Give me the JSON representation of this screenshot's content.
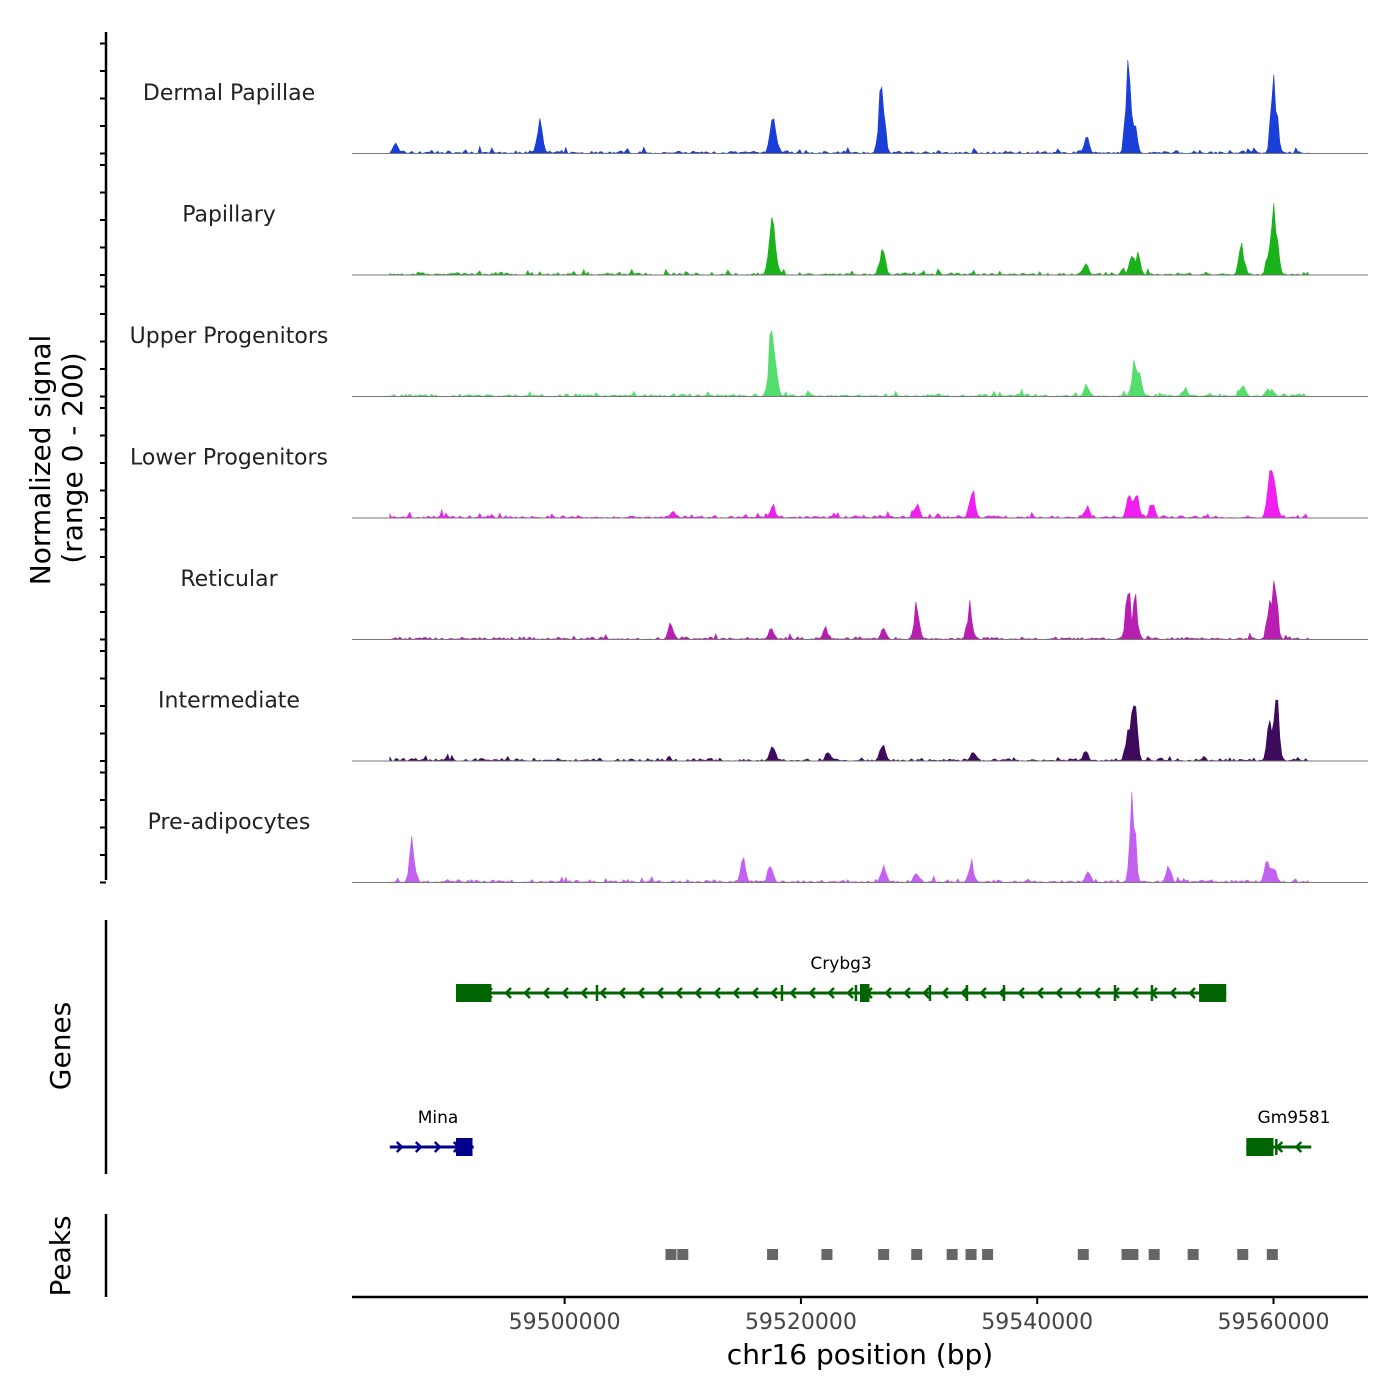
{
  "chart_data": {
    "type": "area",
    "title": "",
    "xlabel": "chr16 position (bp)",
    "ylabel": "Normalized signal",
    "ylabel_range": "(range 0 - 200)",
    "xlim": [
      59482000,
      59568000
    ],
    "ylim": [
      0,
      200
    ],
    "x_ticks": [
      59500000,
      59520000,
      59540000,
      59560000
    ],
    "x_tick_labels": [
      "59500000",
      "59520000",
      "59540000",
      "59560000"
    ],
    "tracks": [
      {
        "name": "Dermal Papillae",
        "color": "#1a3fd6",
        "peaks": [
          [
            59485700,
            22
          ],
          [
            59497900,
            80
          ],
          [
            59517600,
            85
          ],
          [
            59517900,
            40
          ],
          [
            59526800,
            165
          ],
          [
            59526950,
            95
          ],
          [
            59544200,
            35
          ],
          [
            59547700,
            190
          ],
          [
            59548200,
            70
          ],
          [
            59560000,
            180
          ],
          [
            59560200,
            100
          ]
        ]
      },
      {
        "name": "Papillary",
        "color": "#1ab21a",
        "peaks": [
          [
            59517500,
            145
          ],
          [
            59517800,
            60
          ],
          [
            59526900,
            70
          ],
          [
            59544100,
            25
          ],
          [
            59548000,
            45
          ],
          [
            59548500,
            50
          ],
          [
            59557300,
            70
          ],
          [
            59559600,
            50
          ],
          [
            59560000,
            150
          ],
          [
            59560200,
            90
          ]
        ]
      },
      {
        "name": "Upper Progenitors",
        "color": "#55dd6e",
        "peaks": [
          [
            59517500,
            150
          ],
          [
            59517800,
            90
          ],
          [
            59544200,
            25
          ],
          [
            59548200,
            70
          ],
          [
            59548600,
            50
          ],
          [
            59552500,
            18
          ],
          [
            59557400,
            25
          ],
          [
            59559500,
            15
          ],
          [
            59559900,
            15
          ]
        ]
      },
      {
        "name": "Lower Progenitors",
        "color": "#f01ef0",
        "peaks": [
          [
            59509200,
            15
          ],
          [
            59517600,
            30
          ],
          [
            59529800,
            35
          ],
          [
            59534500,
            70
          ],
          [
            59544200,
            25
          ],
          [
            59547800,
            55
          ],
          [
            59548400,
            55
          ],
          [
            59549700,
            35
          ],
          [
            59559700,
            120
          ],
          [
            59560000,
            110
          ]
        ]
      },
      {
        "name": "Reticular",
        "color": "#b81fb0",
        "peaks": [
          [
            59509000,
            35
          ],
          [
            59517500,
            25
          ],
          [
            59522100,
            25
          ],
          [
            59527000,
            25
          ],
          [
            59529800,
            85
          ],
          [
            59534300,
            75
          ],
          [
            59547700,
            110
          ],
          [
            59548300,
            85
          ],
          [
            59559700,
            95
          ],
          [
            59560100,
            130
          ]
        ]
      },
      {
        "name": "Intermediate",
        "color": "#3d0a5c",
        "peaks": [
          [
            59517600,
            40
          ],
          [
            59522300,
            20
          ],
          [
            59526900,
            40
          ],
          [
            59534600,
            20
          ],
          [
            59544100,
            20
          ],
          [
            59547700,
            70
          ],
          [
            59548200,
            145
          ],
          [
            59559700,
            90
          ],
          [
            59560200,
            150
          ]
        ]
      },
      {
        "name": "Pre-adipocytes",
        "color": "#c260f0",
        "peaks": [
          [
            59487100,
            90
          ],
          [
            59515100,
            55
          ],
          [
            59517400,
            35
          ],
          [
            59527000,
            35
          ],
          [
            59529800,
            25
          ],
          [
            59534400,
            45
          ],
          [
            59544300,
            25
          ],
          [
            59548100,
            185
          ],
          [
            59551100,
            40
          ],
          [
            59559500,
            60
          ],
          [
            59560000,
            40
          ]
        ]
      }
    ],
    "genes_label": "Genes",
    "genes": [
      {
        "name": "Crybg3",
        "strand": "-",
        "start": 59490800,
        "end": 59556000,
        "color": "#006400",
        "exons": [
          [
            59490800,
            59493800
          ],
          [
            59525000,
            59525800
          ],
          [
            59553700,
            59556000
          ]
        ]
      },
      {
        "name": "Mina",
        "strand": "+",
        "start": 59485200,
        "end": 59492300,
        "color": "#00008b",
        "exons": [
          [
            59490800,
            59492200
          ]
        ]
      },
      {
        "name": "Gm9581",
        "strand": "-",
        "start": 59557700,
        "end": 59563200,
        "color": "#006400",
        "exons": [
          [
            59557700,
            59560000
          ]
        ]
      }
    ],
    "peaks_label": "Peaks",
    "peaks": [
      59509000,
      59510000,
      59517600,
      59522200,
      59527000,
      59529800,
      59532800,
      59534400,
      59535800,
      59543900,
      59547600,
      59548100,
      59549900,
      59553200,
      59557400,
      59559900
    ]
  }
}
